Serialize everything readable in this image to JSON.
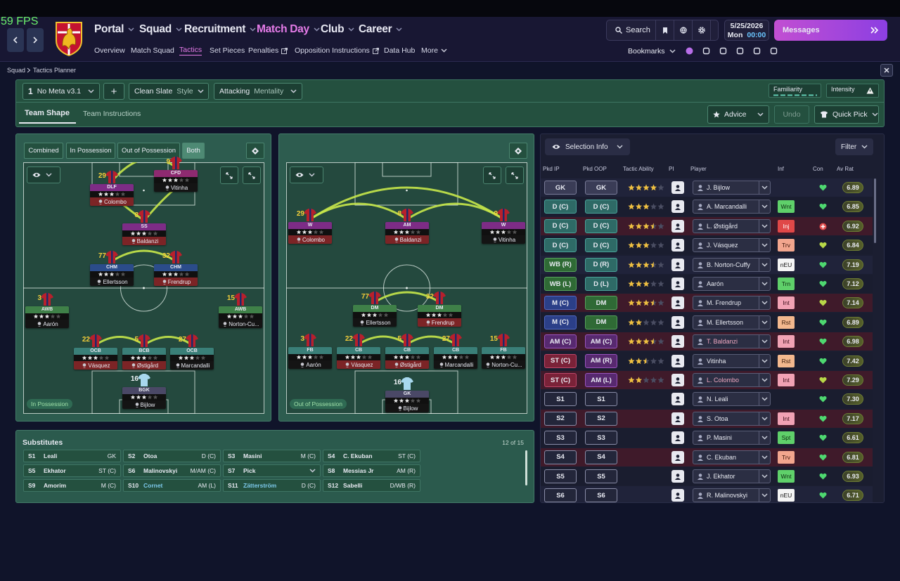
{
  "fps": "59 FPS",
  "nav": {
    "main": [
      "Portal",
      "Squad",
      "Recruitment",
      "Match Day",
      "Club",
      "Career"
    ],
    "sub": [
      "Overview",
      "Match Squad",
      "Tactics",
      "Set Pieces",
      "Penalties",
      "Opposition Instructions",
      "Data Hub",
      "More"
    ]
  },
  "header": {
    "search": "Search",
    "date": "5/25/2026",
    "day": "Mon",
    "time": "00:00",
    "messages": "Messages",
    "bookmarks": "Bookmarks"
  },
  "breadcrumb": [
    "Squad",
    "Tactics Planner"
  ],
  "toolbar": {
    "tactic_slot": "1",
    "tactic": "No Meta v3.1",
    "add": "+",
    "style_value": "Clean Slate",
    "style_label": "Style",
    "mentality_value": "Attacking",
    "mentality_label": "Mentality",
    "familiarity": "Familiarity",
    "intensity": "Intensity"
  },
  "tabs": [
    "Team Shape",
    "Team Instructions"
  ],
  "actions": [
    "Advice",
    "Undo",
    "Quick Pick"
  ],
  "pitch_modes": [
    "Combined",
    "In Possession",
    "Out of Possession",
    "Both"
  ],
  "pitches": [
    {
      "label": "In Possession",
      "players": [
        {
          "number": "29",
          "role": "DLF",
          "name": "Colombo"
        },
        {
          "number": "9",
          "role": "CFD",
          "name": "Vitinha"
        },
        {
          "number": "8",
          "role": "SS",
          "name": "Baldanzi"
        },
        {
          "number": "77",
          "role": "CHM",
          "name": "Ellertsson"
        },
        {
          "number": "32",
          "role": "CHM",
          "name": "Frendrup"
        },
        {
          "number": "3",
          "role": "AWB",
          "name": "Aarón"
        },
        {
          "number": "15",
          "role": "AWB",
          "name": "Norton-Cu..."
        },
        {
          "number": "22",
          "role": "OCB",
          "name": "Vásquez"
        },
        {
          "number": "5",
          "role": "BCB",
          "name": "Østigård"
        },
        {
          "number": "27",
          "role": "OCB",
          "name": "Marcandalli"
        },
        {
          "number": "16",
          "role": "BGK",
          "name": "Bijlow"
        }
      ]
    },
    {
      "label": "Out of Possession",
      "players": [
        {
          "number": "29",
          "role": "W",
          "name": "Colombo"
        },
        {
          "number": "8",
          "role": "AM",
          "name": "Baldanzi"
        },
        {
          "number": "9",
          "role": "W",
          "name": "Vitinha"
        },
        {
          "number": "77",
          "role": "DM",
          "name": "Ellertsson"
        },
        {
          "number": "32",
          "role": "DM",
          "name": "Frendrup"
        },
        {
          "number": "3",
          "role": "FB",
          "name": "Aarón"
        },
        {
          "number": "22",
          "role": "CB",
          "name": "Vásquez"
        },
        {
          "number": "5",
          "role": "CB",
          "name": "Østigård"
        },
        {
          "number": "27",
          "role": "CB",
          "name": "Marcandalli"
        },
        {
          "number": "15",
          "role": "FB",
          "name": "Norton-Cu..."
        },
        {
          "number": "16",
          "role": "GK",
          "name": "Bijlow"
        }
      ]
    }
  ],
  "substitutes": {
    "title": "Substitutes",
    "count": "12 of 15",
    "slots": [
      {
        "slot": "S1",
        "name": "Leali",
        "position": "GK"
      },
      {
        "slot": "S2",
        "name": "Otoa",
        "position": "D (C)"
      },
      {
        "slot": "S3",
        "name": "Masini",
        "position": "M (C)"
      },
      {
        "slot": "S4",
        "name": "C. Ekuban",
        "position": "ST (C)"
      },
      {
        "slot": "S5",
        "name": "Ekhator",
        "position": "ST (C)"
      },
      {
        "slot": "S6",
        "name": "Malinovskyi",
        "position": "M/AM (C)"
      },
      {
        "slot": "S7",
        "name": "Pick"
      },
      {
        "slot": "S8",
        "name": "Messias Jr",
        "position": "AM (R)"
      },
      {
        "slot": "S9",
        "name": "Amorim",
        "position": "M (C)"
      },
      {
        "slot": "S10",
        "name": "Cornet",
        "position": "AM (L)"
      },
      {
        "slot": "S11",
        "name": "Zätterström",
        "position": "D (C)"
      },
      {
        "slot": "S12",
        "name": "Sabelli",
        "position": "D/WB (R)"
      }
    ]
  },
  "selection": {
    "title": "Selection Info",
    "filter": "Filter",
    "columns": [
      "Pkd IP",
      "Pkd OOP",
      "Tactic Ability",
      "PI",
      "Player",
      "Inf",
      "Con",
      "Av Rat"
    ],
    "rows": [
      {
        "ip": "GK",
        "oop": "GK",
        "ability": 4,
        "player": "J. Bijlow",
        "rating": "6.89"
      },
      {
        "ip": "D (C)",
        "oop": "D (C)",
        "ability": 3,
        "player": "A. Marcandalli",
        "inf": "Wnt",
        "rating": "6.85"
      },
      {
        "ip": "D (C)",
        "oop": "D (C)",
        "ability": 3.5,
        "player": "L. Østigård",
        "inf": "Inj",
        "rating": "6.92"
      },
      {
        "ip": "D (C)",
        "oop": "D (C)",
        "ability": 3,
        "player": "J. Vásquez",
        "inf": "Trv",
        "rating": "6.84"
      },
      {
        "ip": "WB (R)",
        "oop": "D (R)",
        "ability": 3.5,
        "player": "B. Norton-Cuffy",
        "inf": "nEU",
        "rating": "7.19"
      },
      {
        "ip": "WB (L)",
        "oop": "D (L)",
        "ability": 3,
        "player": "Aarón",
        "inf": "Trn",
        "rating": "7.12"
      },
      {
        "ip": "M (C)",
        "oop": "DM",
        "ability": 3.5,
        "player": "M. Frendrup",
        "inf": "Int",
        "rating": "7.14"
      },
      {
        "ip": "M (C)",
        "oop": "DM",
        "ability": 2,
        "player": "M. Ellertsson",
        "inf": "Rst",
        "rating": "6.89"
      },
      {
        "ip": "AM (C)",
        "oop": "AM (C)",
        "ability": 3.5,
        "player": "T. Baldanzi",
        "inf": "Int",
        "rating": "6.98"
      },
      {
        "ip": "ST (C)",
        "oop": "AM (R)",
        "ability": 2.5,
        "player": "Vitinha",
        "inf": "Rst",
        "rating": "7.42"
      },
      {
        "ip": "ST (C)",
        "oop": "AM (L)",
        "ability": 2,
        "player": "L. Colombo",
        "inf": "Int",
        "rating": "7.29"
      },
      {
        "ip": "S1",
        "oop": "S1",
        "player": "N. Leali",
        "rating": "7.30"
      },
      {
        "ip": "S2",
        "oop": "S2",
        "player": "S. Otoa",
        "inf": "Int",
        "rating": "7.17"
      },
      {
        "ip": "S3",
        "oop": "S3",
        "player": "P. Masini",
        "inf": "Spt",
        "rating": "6.61"
      },
      {
        "ip": "S4",
        "oop": "S4",
        "player": "C. Ekuban",
        "inf": "Trv",
        "rating": "6.81"
      },
      {
        "ip": "S5",
        "oop": "S5",
        "player": "J. Ekhator",
        "inf": "Wnt",
        "rating": "6.93"
      },
      {
        "ip": "S6",
        "oop": "S6",
        "player": "R. Malinovskyi",
        "inf": "nEU",
        "rating": "6.71"
      }
    ]
  }
}
